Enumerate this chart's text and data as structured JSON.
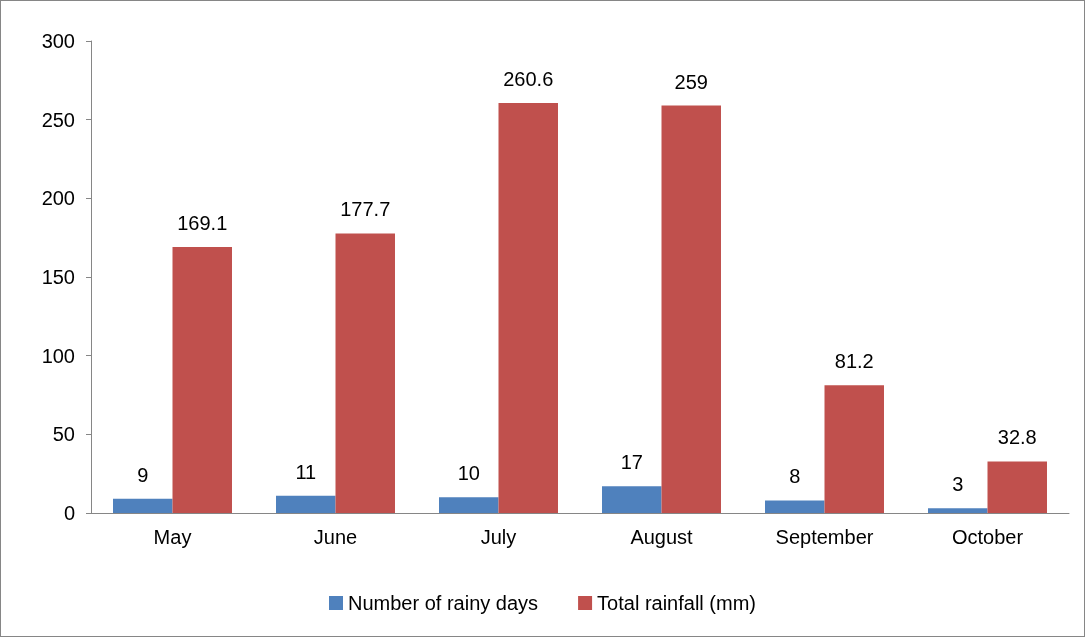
{
  "chart_data": {
    "type": "bar",
    "categories": [
      "May",
      "June",
      "July",
      "August",
      "September",
      "October"
    ],
    "series": [
      {
        "name": "Number of rainy days",
        "color": "#4f81bd",
        "values": [
          9,
          11,
          10,
          17,
          8,
          3
        ]
      },
      {
        "name": "Total rainfall (mm)",
        "color": "#c0504d",
        "values": [
          169.1,
          177.7,
          260.6,
          259,
          81.2,
          32.8
        ]
      }
    ],
    "ylim": [
      0,
      300
    ],
    "yticks": [
      0,
      50,
      100,
      150,
      200,
      250,
      300
    ],
    "data_labels": true,
    "grid": false,
    "legend": "bottom"
  }
}
